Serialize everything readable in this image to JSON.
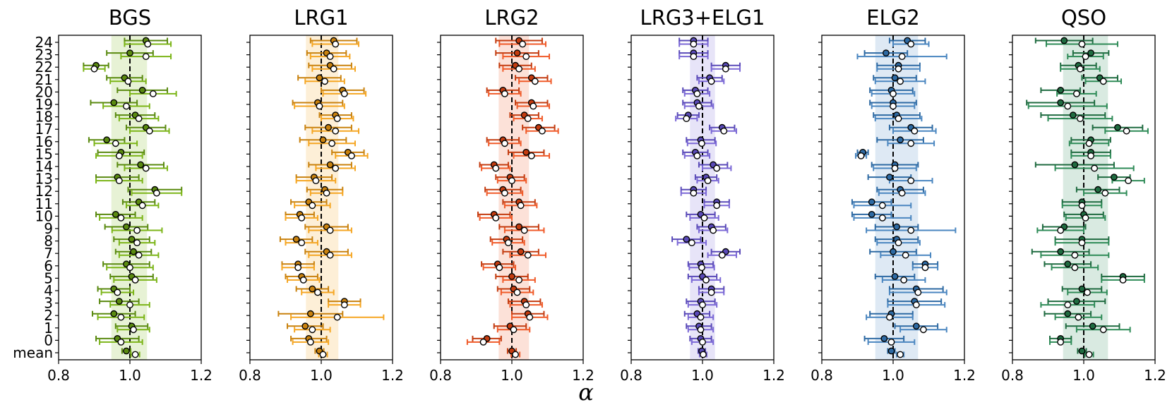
{
  "chart_data": {
    "type": "errorbar-panels",
    "xlabel": "α",
    "xlim": [
      0.8,
      1.2
    ],
    "xticks": [
      "0.8",
      "1.0",
      "1.2"
    ],
    "ref_line": 1.0,
    "yticks": [
      "mean",
      "0",
      "1",
      "2",
      "3",
      "4",
      "5",
      "6",
      "7",
      "8",
      "9",
      "10",
      "11",
      "12",
      "13",
      "14",
      "15",
      "16",
      "17",
      "18",
      "19",
      "20",
      "21",
      "22",
      "23",
      "24"
    ],
    "panels": [
      {
        "title": "BGS",
        "color": "#7cb518",
        "dark": "#5a8a10",
        "band": [
          0.948,
          1.048
        ],
        "a": [
          0.99,
          0.965,
          1.005,
          0.955,
          0.97,
          0.955,
          1.005,
          0.99,
          1.01,
          1.005,
          0.99,
          0.96,
          1.025,
          1.07,
          0.965,
          1.03,
          0.975,
          0.935,
          1.045,
          1.015,
          0.955,
          1.035,
          0.985,
          0.905,
          1.0,
          1.045
        ],
        "ae": [
          0.012,
          0.06,
          0.045,
          0.06,
          0.055,
          0.045,
          0.06,
          0.065,
          0.05,
          0.05,
          0.06,
          0.055,
          0.045,
          0.075,
          0.06,
          0.065,
          0.065,
          0.05,
          0.055,
          0.055,
          0.065,
          0.07,
          0.05,
          0.035,
          0.065,
          0.06
        ],
        "b": [
          1.015,
          0.975,
          1.01,
          0.975,
          1.0,
          0.965,
          1.015,
          1.0,
          1.025,
          1.02,
          1.02,
          0.975,
          1.035,
          1.075,
          0.97,
          1.045,
          0.97,
          0.96,
          1.055,
          1.025,
          0.99,
          1.065,
          0.995,
          0.9,
          1.045,
          1.05
        ],
        "be": [
          0.012,
          0.06,
          0.045,
          0.065,
          0.055,
          0.045,
          0.06,
          0.065,
          0.055,
          0.05,
          0.07,
          0.06,
          0.045,
          0.07,
          0.065,
          0.06,
          0.065,
          0.06,
          0.055,
          0.055,
          0.065,
          0.065,
          0.05,
          0.03,
          0.07,
          0.065
        ]
      },
      {
        "title": "LRG1",
        "color": "#f5a623",
        "dark": "#c9820f",
        "band": [
          0.957,
          1.048
        ],
        "a": [
          0.995,
          0.965,
          0.955,
          0.97,
          1.065,
          0.975,
          0.945,
          0.935,
          1.015,
          0.93,
          1.015,
          0.94,
          0.965,
          1.01,
          0.98,
          1.025,
          1.075,
          1.005,
          1.02,
          1.04,
          0.99,
          1.06,
          0.995,
          1.025,
          1.015,
          1.035
        ],
        "ae": [
          0.012,
          0.05,
          0.05,
          0.09,
          0.045,
          0.045,
          0.045,
          0.045,
          0.06,
          0.045,
          0.06,
          0.04,
          0.05,
          0.05,
          0.05,
          0.06,
          0.045,
          0.065,
          0.065,
          0.045,
          0.07,
          0.06,
          0.06,
          0.06,
          0.055,
          0.065
        ],
        "b": [
          1.005,
          0.97,
          0.975,
          1.045,
          1.065,
          0.99,
          0.95,
          0.935,
          1.025,
          0.945,
          1.025,
          0.945,
          0.975,
          1.015,
          0.985,
          1.04,
          1.085,
          1.03,
          1.04,
          1.045,
          0.995,
          1.065,
          1.01,
          1.035,
          1.025,
          1.04
        ],
        "be": [
          0.012,
          0.05,
          0.05,
          0.13,
          0.045,
          0.045,
          0.045,
          0.045,
          0.06,
          0.045,
          0.06,
          0.045,
          0.05,
          0.045,
          0.055,
          0.055,
          0.045,
          0.065,
          0.065,
          0.045,
          0.07,
          0.06,
          0.055,
          0.06,
          0.055,
          0.065
        ]
      },
      {
        "title": "LRG2",
        "color": "#f05a28",
        "dark": "#c43c10",
        "band": [
          0.963,
          1.048
        ],
        "a": [
          1.0,
          0.93,
          0.995,
          1.045,
          1.035,
          1.005,
          1.0,
          0.96,
          1.025,
          0.985,
          1.02,
          0.95,
          1.02,
          0.975,
          0.995,
          0.95,
          1.04,
          0.975,
          1.075,
          1.035,
          1.055,
          0.975,
          1.055,
          1.01,
          1.015,
          1.02
        ],
        "ae": [
          0.012,
          0.04,
          0.045,
          0.045,
          0.045,
          0.045,
          0.045,
          0.045,
          0.05,
          0.045,
          0.055,
          0.045,
          0.045,
          0.05,
          0.04,
          0.04,
          0.05,
          0.045,
          0.045,
          0.04,
          0.045,
          0.045,
          0.045,
          0.045,
          0.06,
          0.065
        ],
        "b": [
          1.01,
          0.92,
          1.005,
          1.05,
          1.04,
          1.015,
          1.02,
          0.965,
          1.045,
          0.99,
          1.035,
          0.955,
          1.025,
          0.98,
          1.0,
          0.955,
          1.055,
          0.98,
          1.085,
          1.045,
          1.06,
          0.98,
          1.065,
          1.02,
          1.04,
          1.03
        ],
        "be": [
          0.012,
          0.045,
          0.045,
          0.05,
          0.045,
          0.045,
          0.045,
          0.045,
          0.05,
          0.045,
          0.055,
          0.045,
          0.045,
          0.05,
          0.04,
          0.04,
          0.05,
          0.045,
          0.045,
          0.04,
          0.045,
          0.045,
          0.045,
          0.045,
          0.065,
          0.065
        ]
      },
      {
        "title": "LRG3+ELG1",
        "color": "#7b68d6",
        "dark": "#5a4ab8",
        "band": [
          0.965,
          1.035
        ],
        "a": [
          0.998,
          0.995,
          0.99,
          0.985,
          0.995,
          1.025,
          1.0,
          0.995,
          1.065,
          0.955,
          1.025,
          0.995,
          1.04,
          0.975,
          1.01,
          1.03,
          0.98,
          0.995,
          1.055,
          0.96,
          0.985,
          0.98,
          1.02,
          1.065,
          0.975,
          0.975
        ],
        "ae": [
          0.01,
          0.03,
          0.035,
          0.035,
          0.04,
          0.035,
          0.04,
          0.035,
          0.04,
          0.04,
          0.04,
          0.04,
          0.035,
          0.035,
          0.03,
          0.04,
          0.035,
          0.04,
          0.035,
          0.03,
          0.04,
          0.035,
          0.035,
          0.04,
          0.04,
          0.04
        ],
        "b": [
          1.002,
          1.0,
          0.995,
          0.995,
          1.0,
          1.025,
          1.01,
          0.998,
          1.055,
          0.97,
          1.03,
          1.005,
          1.04,
          0.975,
          1.015,
          1.04,
          0.985,
          0.998,
          1.06,
          0.955,
          0.99,
          0.985,
          1.025,
          1.065,
          0.975,
          0.975
        ],
        "be": [
          0.01,
          0.03,
          0.035,
          0.035,
          0.04,
          0.035,
          0.04,
          0.035,
          0.04,
          0.04,
          0.04,
          0.04,
          0.035,
          0.035,
          0.03,
          0.04,
          0.035,
          0.04,
          0.035,
          0.03,
          0.04,
          0.035,
          0.035,
          0.04,
          0.04,
          0.04
        ]
      },
      {
        "title": "ELG2",
        "color": "#4a86c0",
        "dark": "#2e6aa3",
        "band": [
          0.95,
          1.07
        ],
        "a": [
          0.995,
          0.975,
          1.065,
          0.995,
          1.06,
          1.065,
          1.005,
          1.09,
          1.0,
          1.01,
          1.01,
          0.94,
          0.94,
          1.02,
          0.99,
          1.005,
          0.915,
          1.02,
          1.05,
          1.01,
          1.0,
          0.995,
          1.005,
          1.015,
          0.98,
          1.04
        ],
        "ae": [
          0.01,
          0.055,
          0.06,
          0.06,
          0.075,
          0.075,
          0.055,
          0.035,
          0.065,
          0.06,
          0.06,
          0.055,
          0.055,
          0.065,
          0.06,
          0.065,
          0.015,
          0.065,
          0.06,
          0.065,
          0.065,
          0.06,
          0.06,
          0.06,
          0.06,
          0.05
        ],
        "b": [
          1.02,
          0.995,
          1.085,
          0.99,
          1.065,
          1.07,
          1.03,
          1.09,
          1.035,
          1.015,
          1.05,
          0.97,
          0.97,
          1.025,
          1.05,
          1.005,
          0.91,
          1.05,
          1.06,
          1.015,
          1.0,
          1.0,
          1.02,
          1.015,
          1.025,
          1.05
        ],
        "be": [
          0.01,
          0.065,
          0.065,
          0.065,
          0.08,
          0.08,
          0.06,
          0.035,
          0.07,
          0.06,
          0.125,
          0.08,
          0.08,
          0.065,
          0.06,
          0.06,
          0.015,
          0.065,
          0.06,
          0.065,
          0.06,
          0.06,
          0.07,
          0.06,
          0.125,
          0.05
        ]
      },
      {
        "title": "QSO",
        "color": "#2e8b57",
        "dark": "#1f6b40",
        "band": [
          0.942,
          1.068
        ],
        "a": [
          0.995,
          0.935,
          1.025,
          0.955,
          0.98,
          0.995,
          1.11,
          0.955,
          0.935,
          0.995,
          0.945,
          1.0,
          0.995,
          1.04,
          1.085,
          0.975,
          1.02,
          1.02,
          1.095,
          0.97,
          0.935,
          0.935,
          1.045,
          0.985,
          1.02,
          0.945
        ],
        "ae": [
          0.012,
          0.03,
          0.075,
          0.065,
          0.08,
          0.055,
          0.06,
          0.065,
          0.08,
          0.075,
          0.06,
          0.055,
          0.055,
          0.06,
          0.045,
          0.11,
          0.055,
          0.055,
          0.07,
          0.09,
          0.095,
          0.055,
          0.05,
          0.05,
          0.05,
          0.08
        ],
        "b": [
          1.015,
          0.935,
          1.055,
          0.985,
          0.955,
          1.01,
          1.11,
          0.975,
          0.975,
          0.995,
          0.935,
          1.005,
          0.995,
          1.06,
          1.125,
          1.03,
          1.02,
          1.015,
          1.12,
          0.99,
          0.955,
          0.98,
          1.055,
          0.99,
          1.005,
          0.995
        ],
        "be": [
          0.012,
          0.03,
          0.075,
          0.065,
          0.075,
          0.055,
          0.06,
          0.065,
          0.095,
          0.075,
          0.065,
          0.055,
          0.055,
          0.06,
          0.045,
          0.11,
          0.055,
          0.055,
          0.06,
          0.09,
          0.11,
          0.055,
          0.05,
          0.055,
          0.05,
          0.1
        ]
      }
    ]
  }
}
